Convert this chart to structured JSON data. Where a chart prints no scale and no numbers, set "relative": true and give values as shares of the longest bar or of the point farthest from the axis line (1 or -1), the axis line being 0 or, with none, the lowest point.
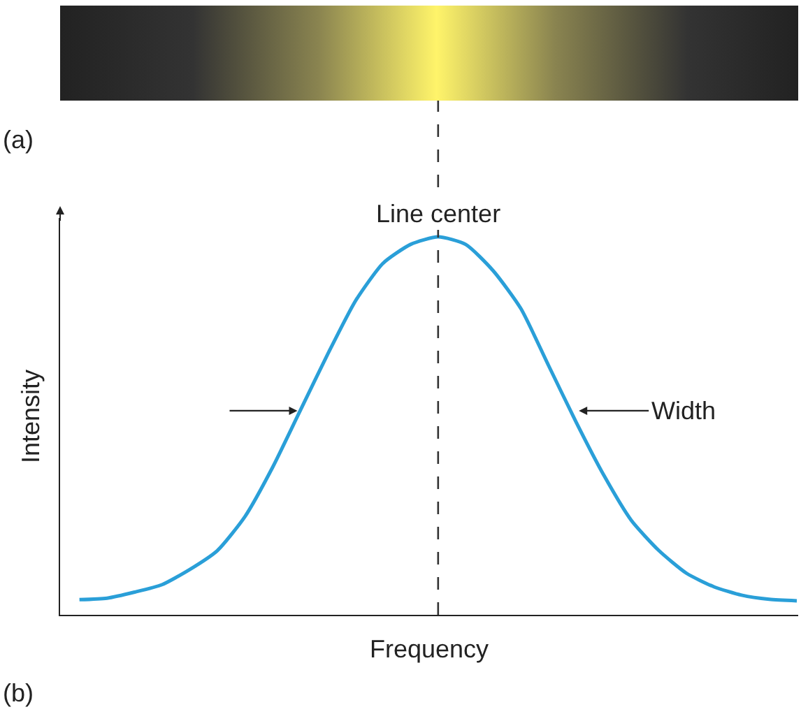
{
  "chart_data": {
    "type": "line",
    "relative": true,
    "categories": [
      null,
      null,
      null,
      null,
      null,
      null,
      null,
      null,
      null,
      null,
      null,
      null,
      null,
      null,
      null,
      null,
      null,
      null,
      null,
      null,
      null,
      null,
      null,
      null,
      null,
      null,
      null
    ],
    "series": [
      {
        "color": "#2a9fd8",
        "values": [
          0.04,
          0.044,
          0.06,
          0.08,
          0.12,
          0.17,
          0.26,
          0.39,
          0.54,
          0.69,
          0.83,
          0.93,
          0.98,
          1,
          0.98,
          0.91,
          0.81,
          0.66,
          0.51,
          0.37,
          0.25,
          0.17,
          0.11,
          0.074,
          0.052,
          0.041,
          0.037
        ]
      }
    ],
    "xlabel": "Frequency",
    "ylabel": "Intensity",
    "annotations": [
      "Line center",
      "Width",
      "(a)",
      "(b)"
    ],
    "marker": "none",
    "line_style": "solid"
  }
}
